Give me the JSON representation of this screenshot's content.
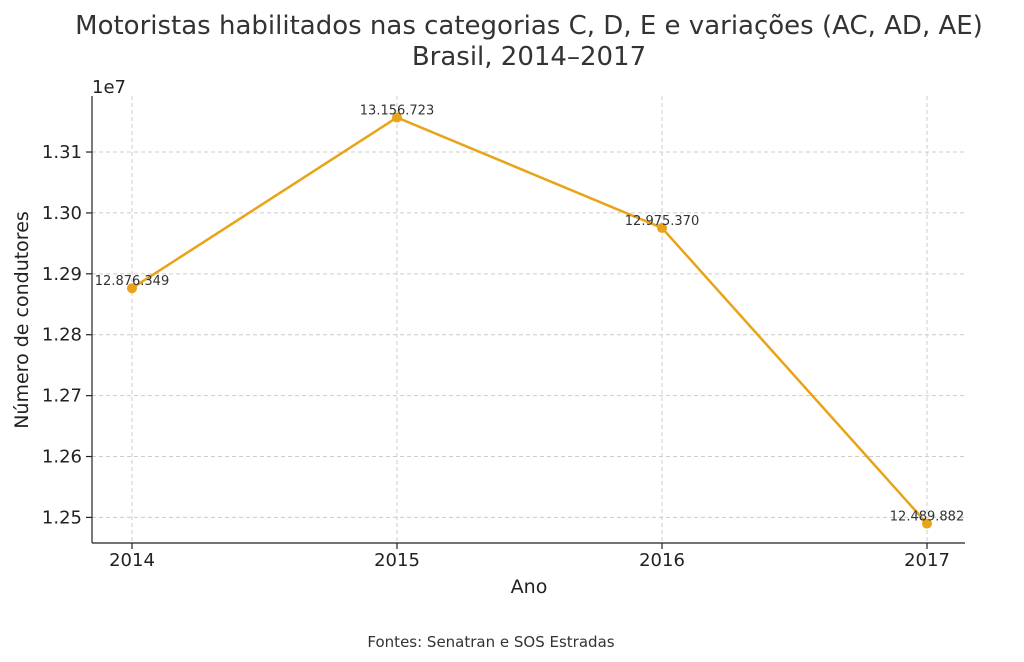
{
  "chart_data": {
    "type": "line",
    "title_line1": "Motoristas habilitados nas categorias C, D, E e variações (AC, AD, AE)",
    "title_line2": "Brasil, 2014–2017",
    "xlabel": "Ano",
    "ylabel": "Número de condutores",
    "y_offset_text": "1e7",
    "x": [
      "2014",
      "2015",
      "2016",
      "2017"
    ],
    "values": [
      12876349,
      13156723,
      12975370,
      12489882
    ],
    "data_labels": [
      "12.876.349",
      "13.156.723",
      "12.975.370",
      "12.489.882"
    ],
    "yticks": [
      12500000,
      12600000,
      12700000,
      12800000,
      12900000,
      13000000,
      13100000
    ],
    "ytick_labels": [
      "1.25",
      "1.26",
      "1.27",
      "1.28",
      "1.29",
      "1.30",
      "1.31"
    ],
    "ylim": [
      12458000,
      13192000
    ],
    "grid": true,
    "color": "#E8A317",
    "source": "Fontes: Senatran e SOS Estradas"
  }
}
